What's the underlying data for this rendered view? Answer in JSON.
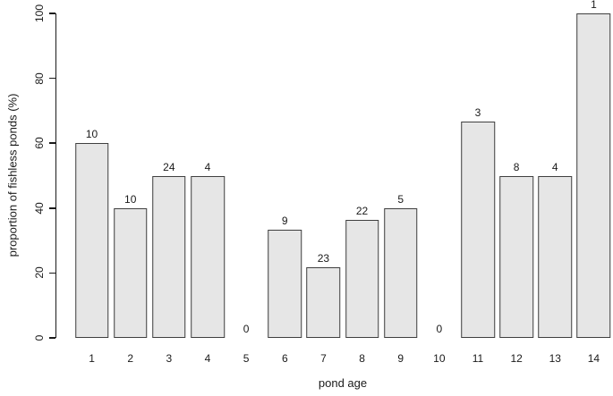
{
  "chart_data": {
    "type": "bar",
    "title": "",
    "xlabel": "pond age",
    "ylabel": "proportion of fishless ponds (%)",
    "categories": [
      "1",
      "2",
      "3",
      "4",
      "5",
      "6",
      "7",
      "8",
      "9",
      "10",
      "11",
      "12",
      "13",
      "14"
    ],
    "values": [
      60,
      40,
      50,
      50,
      0,
      33.3,
      21.7,
      36.4,
      40,
      0,
      66.7,
      50,
      50,
      100
    ],
    "bar_labels": [
      "10",
      "10",
      "24",
      "4",
      "0",
      "9",
      "23",
      "22",
      "5",
      "0",
      "3",
      "8",
      "4",
      "1"
    ],
    "ylim": [
      0,
      100
    ],
    "yticks": [
      0,
      20,
      40,
      60,
      80,
      100
    ],
    "grid": false,
    "legend_position": "none",
    "colors": {
      "bar_fill": "#E6E6E6",
      "bar_border": "#3F3F3F",
      "axis": "#1A1A1A",
      "background": "#FFFFFF"
    }
  }
}
